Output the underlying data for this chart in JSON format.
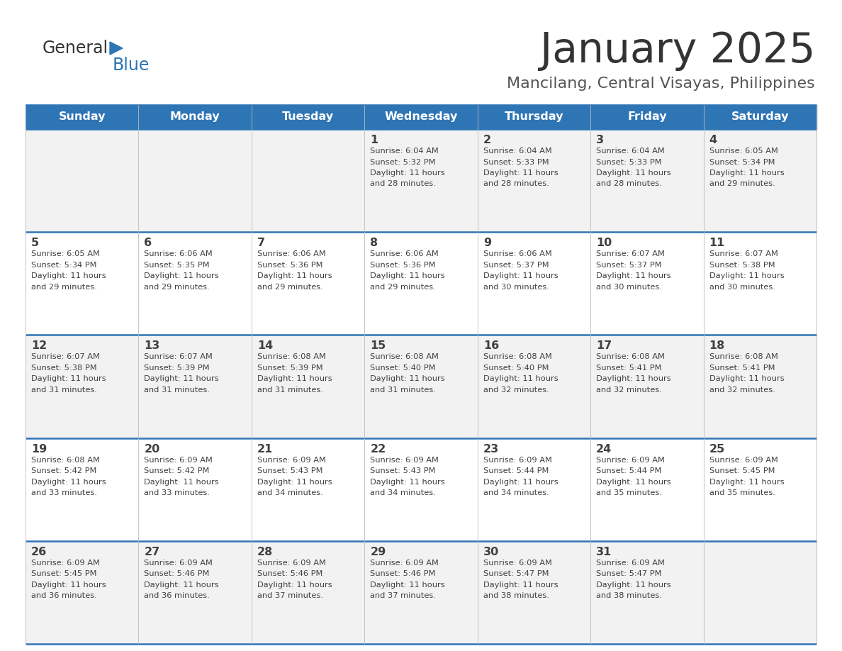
{
  "title": "January 2025",
  "subtitle": "Mancilang, Central Visayas, Philippines",
  "header_color": "#2E75B6",
  "header_text_color": "#FFFFFF",
  "alt_row_color": "#F2F2F2",
  "white_row_color": "#FFFFFF",
  "border_color": "#2E75B6",
  "text_color": "#404040",
  "days_of_week": [
    "Sunday",
    "Monday",
    "Tuesday",
    "Wednesday",
    "Thursday",
    "Friday",
    "Saturday"
  ],
  "row_colors": [
    "#F2F2F2",
    "#FFFFFF",
    "#F2F2F2",
    "#FFFFFF",
    "#F2F2F2"
  ],
  "calendar": [
    [
      {
        "day": "",
        "sunrise": "",
        "sunset": "",
        "daylight": ""
      },
      {
        "day": "",
        "sunrise": "",
        "sunset": "",
        "daylight": ""
      },
      {
        "day": "",
        "sunrise": "",
        "sunset": "",
        "daylight": ""
      },
      {
        "day": "1",
        "sunrise": "6:04 AM",
        "sunset": "5:32 PM",
        "daylight": "11 hours and 28 minutes"
      },
      {
        "day": "2",
        "sunrise": "6:04 AM",
        "sunset": "5:33 PM",
        "daylight": "11 hours and 28 minutes"
      },
      {
        "day": "3",
        "sunrise": "6:04 AM",
        "sunset": "5:33 PM",
        "daylight": "11 hours and 28 minutes"
      },
      {
        "day": "4",
        "sunrise": "6:05 AM",
        "sunset": "5:34 PM",
        "daylight": "11 hours and 29 minutes"
      }
    ],
    [
      {
        "day": "5",
        "sunrise": "6:05 AM",
        "sunset": "5:34 PM",
        "daylight": "11 hours and 29 minutes"
      },
      {
        "day": "6",
        "sunrise": "6:06 AM",
        "sunset": "5:35 PM",
        "daylight": "11 hours and 29 minutes"
      },
      {
        "day": "7",
        "sunrise": "6:06 AM",
        "sunset": "5:36 PM",
        "daylight": "11 hours and 29 minutes"
      },
      {
        "day": "8",
        "sunrise": "6:06 AM",
        "sunset": "5:36 PM",
        "daylight": "11 hours and 29 minutes"
      },
      {
        "day": "9",
        "sunrise": "6:06 AM",
        "sunset": "5:37 PM",
        "daylight": "11 hours and 30 minutes"
      },
      {
        "day": "10",
        "sunrise": "6:07 AM",
        "sunset": "5:37 PM",
        "daylight": "11 hours and 30 minutes"
      },
      {
        "day": "11",
        "sunrise": "6:07 AM",
        "sunset": "5:38 PM",
        "daylight": "11 hours and 30 minutes"
      }
    ],
    [
      {
        "day": "12",
        "sunrise": "6:07 AM",
        "sunset": "5:38 PM",
        "daylight": "11 hours and 31 minutes"
      },
      {
        "day": "13",
        "sunrise": "6:07 AM",
        "sunset": "5:39 PM",
        "daylight": "11 hours and 31 minutes"
      },
      {
        "day": "14",
        "sunrise": "6:08 AM",
        "sunset": "5:39 PM",
        "daylight": "11 hours and 31 minutes"
      },
      {
        "day": "15",
        "sunrise": "6:08 AM",
        "sunset": "5:40 PM",
        "daylight": "11 hours and 31 minutes"
      },
      {
        "day": "16",
        "sunrise": "6:08 AM",
        "sunset": "5:40 PM",
        "daylight": "11 hours and 32 minutes"
      },
      {
        "day": "17",
        "sunrise": "6:08 AM",
        "sunset": "5:41 PM",
        "daylight": "11 hours and 32 minutes"
      },
      {
        "day": "18",
        "sunrise": "6:08 AM",
        "sunset": "5:41 PM",
        "daylight": "11 hours and 32 minutes"
      }
    ],
    [
      {
        "day": "19",
        "sunrise": "6:08 AM",
        "sunset": "5:42 PM",
        "daylight": "11 hours and 33 minutes"
      },
      {
        "day": "20",
        "sunrise": "6:09 AM",
        "sunset": "5:42 PM",
        "daylight": "11 hours and 33 minutes"
      },
      {
        "day": "21",
        "sunrise": "6:09 AM",
        "sunset": "5:43 PM",
        "daylight": "11 hours and 34 minutes"
      },
      {
        "day": "22",
        "sunrise": "6:09 AM",
        "sunset": "5:43 PM",
        "daylight": "11 hours and 34 minutes"
      },
      {
        "day": "23",
        "sunrise": "6:09 AM",
        "sunset": "5:44 PM",
        "daylight": "11 hours and 34 minutes"
      },
      {
        "day": "24",
        "sunrise": "6:09 AM",
        "sunset": "5:44 PM",
        "daylight": "11 hours and 35 minutes"
      },
      {
        "day": "25",
        "sunrise": "6:09 AM",
        "sunset": "5:45 PM",
        "daylight": "11 hours and 35 minutes"
      }
    ],
    [
      {
        "day": "26",
        "sunrise": "6:09 AM",
        "sunset": "5:45 PM",
        "daylight": "11 hours and 36 minutes"
      },
      {
        "day": "27",
        "sunrise": "6:09 AM",
        "sunset": "5:46 PM",
        "daylight": "11 hours and 36 minutes"
      },
      {
        "day": "28",
        "sunrise": "6:09 AM",
        "sunset": "5:46 PM",
        "daylight": "11 hours and 37 minutes"
      },
      {
        "day": "29",
        "sunrise": "6:09 AM",
        "sunset": "5:46 PM",
        "daylight": "11 hours and 37 minutes"
      },
      {
        "day": "30",
        "sunrise": "6:09 AM",
        "sunset": "5:47 PM",
        "daylight": "11 hours and 38 minutes"
      },
      {
        "day": "31",
        "sunrise": "6:09 AM",
        "sunset": "5:47 PM",
        "daylight": "11 hours and 38 minutes"
      },
      {
        "day": "",
        "sunrise": "",
        "sunset": "",
        "daylight": ""
      }
    ]
  ]
}
